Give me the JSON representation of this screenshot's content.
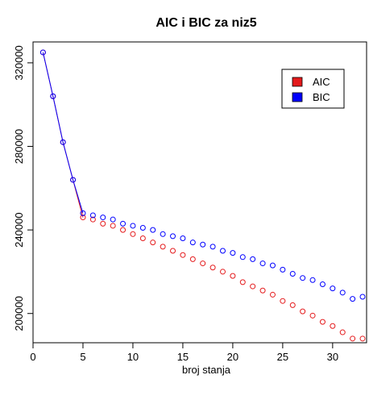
{
  "chart_data": {
    "type": "scatter",
    "title": "AIC i BIC za niz5",
    "xlabel": "broj stanja",
    "ylabel": "",
    "xlim": [
      0,
      33.4
    ],
    "ylim": [
      186000,
      330000
    ],
    "x_ticks": [
      0,
      5,
      10,
      15,
      20,
      25,
      30
    ],
    "y_ticks": [
      200000,
      240000,
      280000,
      320000
    ],
    "grid": false,
    "legend_position": "top-right",
    "x": [
      1,
      2,
      3,
      4,
      5,
      6,
      7,
      8,
      9,
      10,
      11,
      12,
      13,
      14,
      15,
      16,
      17,
      18,
      19,
      20,
      21,
      22,
      23,
      24,
      25,
      26,
      27,
      28,
      29,
      30,
      31,
      32,
      33
    ],
    "series": [
      {
        "name": "AIC",
        "color": "#e41a1c",
        "marker": "open-circle",
        "values": [
          325000,
          304000,
          282000,
          264000,
          246000,
          245000,
          243000,
          242000,
          240000,
          238000,
          236000,
          234000,
          232000,
          230000,
          228000,
          226000,
          224000,
          222000,
          220000,
          218000,
          215000,
          213000,
          211000,
          209000,
          206000,
          204000,
          201000,
          199000,
          196000,
          194000,
          191000,
          188000,
          188000
        ]
      },
      {
        "name": "BIC",
        "color": "#0000ff",
        "marker": "open-circle",
        "values": [
          325000,
          304000,
          282000,
          264000,
          248000,
          247000,
          246000,
          245000,
          243000,
          242000,
          241000,
          240000,
          238000,
          237000,
          236000,
          234000,
          233000,
          232000,
          230000,
          229000,
          227000,
          226000,
          224000,
          223000,
          221000,
          219000,
          217000,
          216000,
          214000,
          212000,
          210000,
          207000,
          208000
        ]
      }
    ],
    "connecting_line": {
      "x_range": [
        1,
        5
      ],
      "colors": [
        "#e41a1c",
        "#0000ff"
      ],
      "style": "solid"
    }
  }
}
